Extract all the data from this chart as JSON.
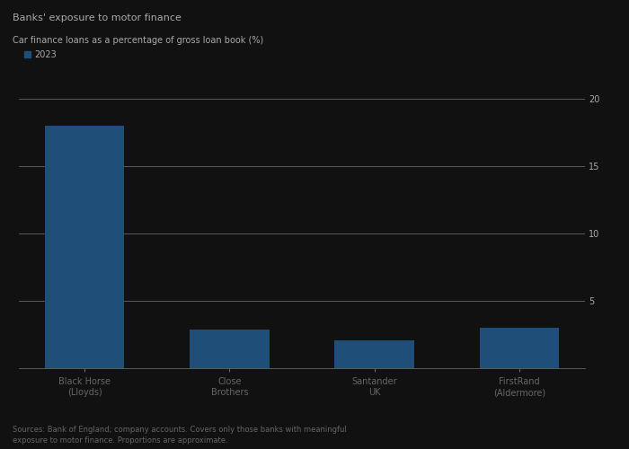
{
  "title": "Banks' exposure to motor finance",
  "subtitle": "Car finance loans as a percentage of gross loan book (%)",
  "legend_label": "2023",
  "categories": [
    "Black Horse\n(Lloyds)",
    "Close\nBrothers",
    "Santander\nUK",
    "FirstRand\n(Aldermore)"
  ],
  "values": [
    18.0,
    2.9,
    2.1,
    3.0
  ],
  "bar_color": "#1f4e79",
  "background_color": "#111111",
  "text_color": "#aaaaaa",
  "grid_color": "#666666",
  "ylim": [
    0,
    20
  ],
  "yticks": [
    5,
    10,
    15,
    20
  ],
  "title_fontsize": 8,
  "subtitle_fontsize": 7,
  "tick_fontsize": 7,
  "legend_color": "#1f4e79",
  "source_text": "Sources: Bank of England; company accounts. Covers only those banks with meaningful\nexposure to motor finance. Proportions are approximate."
}
